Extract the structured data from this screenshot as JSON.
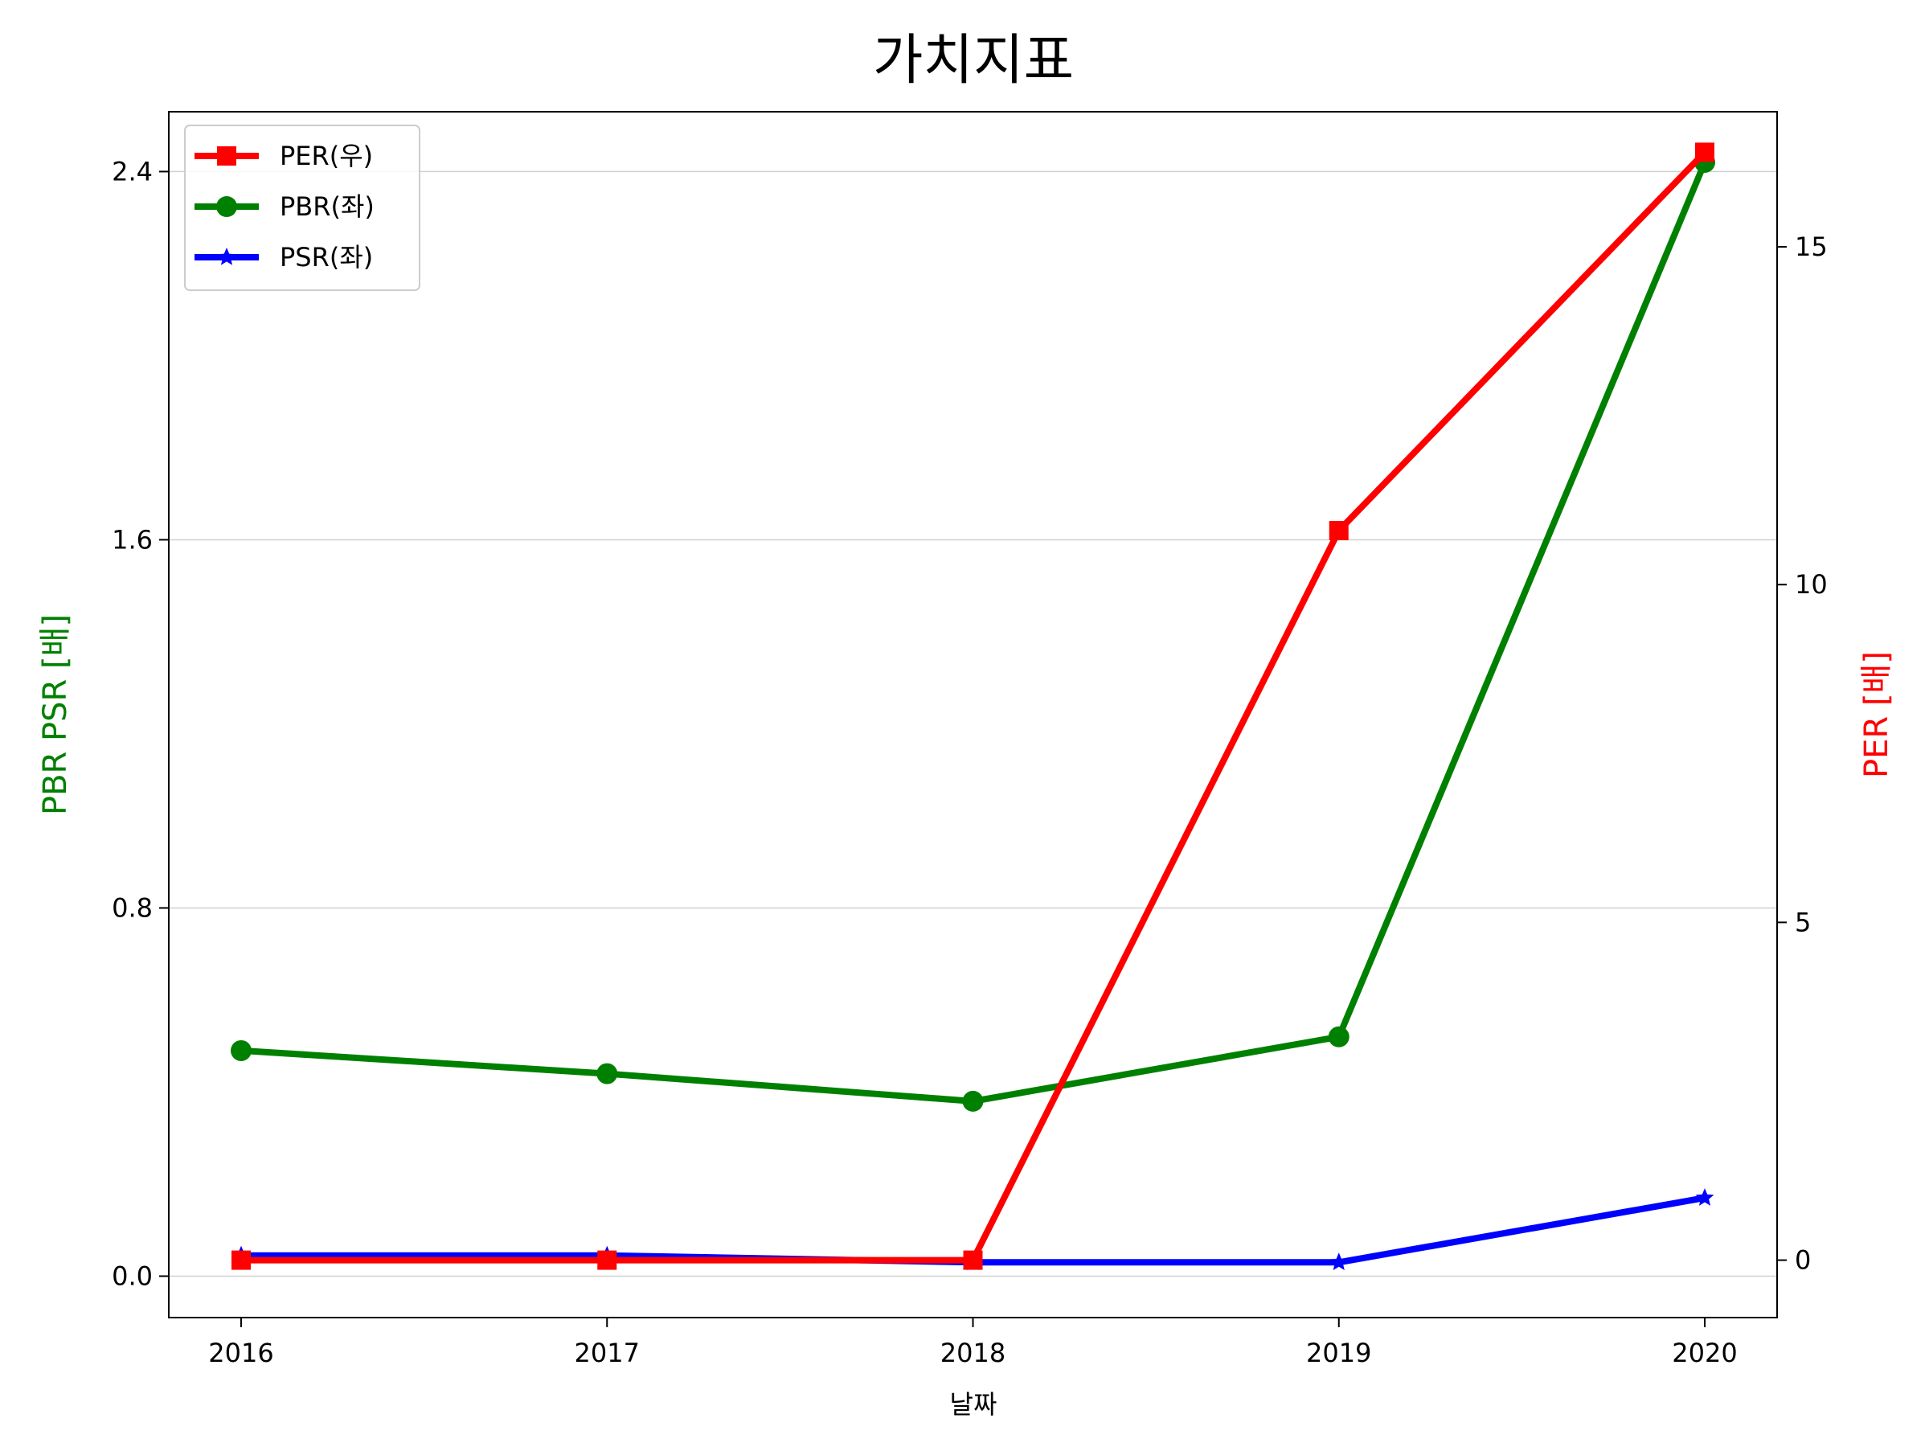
{
  "chart_data": {
    "type": "line",
    "title": "가치지표",
    "xlabel": "날짜",
    "ylabel_left": "PBR PSR [배]",
    "ylabel_right": "PER [배]",
    "categories": [
      "2016",
      "2017",
      "2018",
      "2019",
      "2020"
    ],
    "ylim_left": [
      -0.09,
      2.53
    ],
    "yticks_left": [
      "0.0",
      "0.8",
      "1.6",
      "2.4"
    ],
    "ylim_right": [
      -0.85,
      17.0
    ],
    "yticks_right": [
      "0",
      "5",
      "10",
      "15"
    ],
    "grid": "horizontal (left axis)",
    "legend_position": "top-left",
    "series": [
      {
        "name": "PER(우)",
        "axis": "right",
        "color": "#ff0000",
        "marker": "square",
        "values": [
          0,
          0,
          0,
          10.8,
          16.4
        ]
      },
      {
        "name": "PBR(좌)",
        "axis": "left",
        "color": "#008000",
        "marker": "circle",
        "values": [
          0.49,
          0.44,
          0.38,
          0.52,
          2.42
        ]
      },
      {
        "name": "PSR(좌)",
        "axis": "left",
        "color": "#0000ff",
        "marker": "star",
        "values": [
          0.045,
          0.045,
          0.03,
          0.03,
          0.17
        ]
      }
    ]
  }
}
